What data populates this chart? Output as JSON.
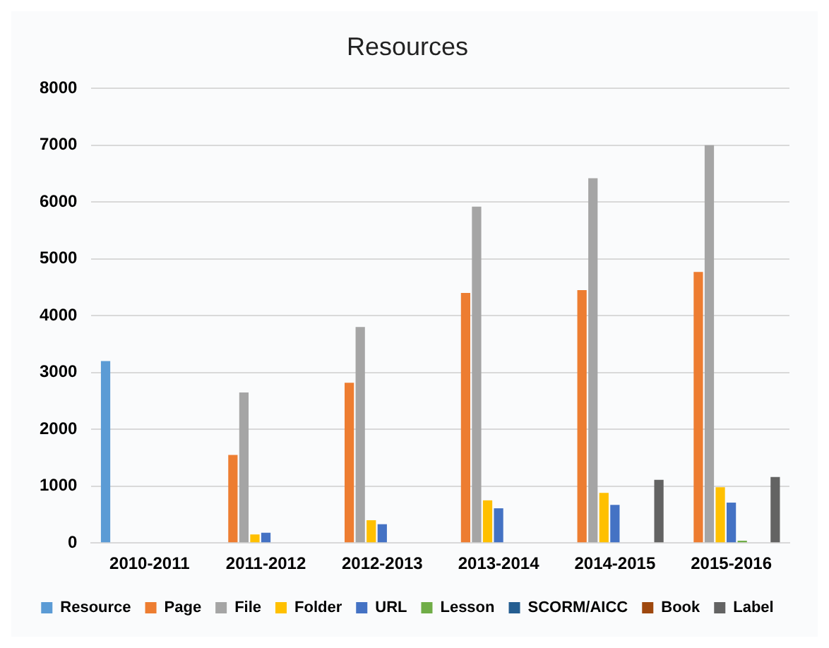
{
  "chart_data": {
    "type": "bar",
    "title": "Resources",
    "categories": [
      "2010-2011",
      "2011-2012",
      "2012-2013",
      "2013-2014",
      "2014-2015",
      "2015-2016"
    ],
    "series": [
      {
        "name": "Resource",
        "color": "#5b9bd5",
        "values": [
          3200,
          null,
          null,
          null,
          null,
          null
        ]
      },
      {
        "name": "Page",
        "color": "#ed7d31",
        "values": [
          null,
          1550,
          2820,
          4400,
          4450,
          4770
        ]
      },
      {
        "name": "File",
        "color": "#a5a5a5",
        "values": [
          null,
          2650,
          3800,
          5920,
          6420,
          7000
        ]
      },
      {
        "name": "Folder",
        "color": "#ffc000",
        "values": [
          null,
          150,
          400,
          750,
          880,
          980
        ]
      },
      {
        "name": "URL",
        "color": "#4472c4",
        "values": [
          null,
          180,
          330,
          610,
          670,
          710
        ]
      },
      {
        "name": "Lesson",
        "color": "#70ad47",
        "values": [
          null,
          null,
          null,
          null,
          null,
          40
        ]
      },
      {
        "name": "SCORM/AICC",
        "color": "#255e91",
        "values": [
          null,
          null,
          null,
          null,
          null,
          null
        ]
      },
      {
        "name": "Book",
        "color": "#9e480e",
        "values": [
          null,
          null,
          null,
          null,
          null,
          null
        ]
      },
      {
        "name": "Label",
        "color": "#636363",
        "values": [
          null,
          null,
          null,
          null,
          1110,
          1160
        ]
      }
    ],
    "ylim": [
      0,
      8000
    ],
    "yticks": [
      0,
      1000,
      2000,
      3000,
      4000,
      5000,
      6000,
      7000,
      8000
    ],
    "grid": "y",
    "legend": "bottom"
  }
}
